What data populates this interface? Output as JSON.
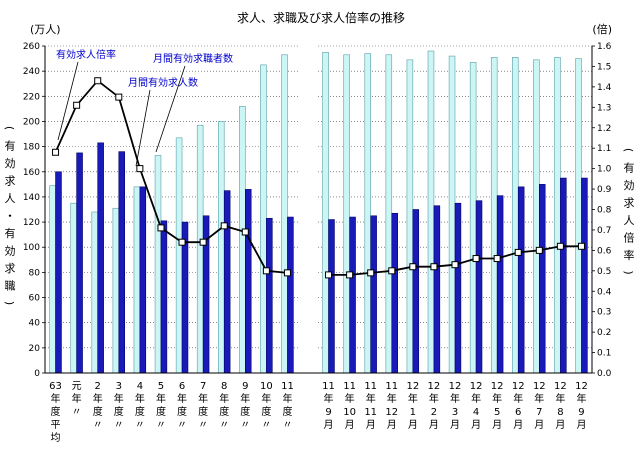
{
  "chart_data": {
    "type": "bar+line",
    "title": "求人、求職及び求人倍率の推移",
    "left_unit": "(万人)",
    "right_unit": "(倍)",
    "left_axis_label": "(有効求人・有効求職)",
    "right_axis_label": "(有効求人倍率)",
    "ylim_left": [
      0,
      260
    ],
    "ylim_right": [
      0,
      1.6
    ],
    "yticks_left": [
      "0",
      "20",
      "40",
      "60",
      "80",
      "100",
      "120",
      "140",
      "160",
      "180",
      "200",
      "220",
      "240",
      "260"
    ],
    "yticks_right": [
      "0.0",
      "0.1",
      "0.2",
      "0.3",
      "0.4",
      "0.5",
      "0.6",
      "0.7",
      "0.8",
      "0.9",
      "1.0",
      "1.1",
      "1.2",
      "1.3",
      "1.4",
      "1.5",
      "1.6"
    ],
    "categories": [
      [
        "63",
        "年",
        "度",
        "平",
        "均"
      ],
      [
        "元",
        "年",
        "〃"
      ],
      [
        "2",
        "年",
        "度",
        "〃"
      ],
      [
        "3",
        "年",
        "度",
        "〃"
      ],
      [
        "4",
        "年",
        "度",
        "〃"
      ],
      [
        "5",
        "年",
        "度",
        "〃"
      ],
      [
        "6",
        "年",
        "度",
        "〃"
      ],
      [
        "7",
        "年",
        "度",
        "〃"
      ],
      [
        "8",
        "年",
        "度",
        "〃"
      ],
      [
        "9",
        "年",
        "度",
        "〃"
      ],
      [
        "10",
        "年",
        "度",
        "〃"
      ],
      [
        "11",
        "年",
        "度",
        "〃"
      ],
      [
        "11",
        "年",
        "9",
        "月"
      ],
      [
        "11",
        "年",
        "10",
        "月"
      ],
      [
        "11",
        "年",
        "11",
        "月"
      ],
      [
        "11",
        "年",
        "12",
        "月"
      ],
      [
        "12",
        "年",
        "1",
        "月"
      ],
      [
        "12",
        "年",
        "2",
        "月"
      ],
      [
        "12",
        "年",
        "3",
        "月"
      ],
      [
        "12",
        "年",
        "4",
        "月"
      ],
      [
        "12",
        "年",
        "5",
        "月"
      ],
      [
        "12",
        "年",
        "6",
        "月"
      ],
      [
        "12",
        "年",
        "7",
        "月"
      ],
      [
        "12",
        "年",
        "8",
        "月"
      ],
      [
        "12",
        "年",
        "9",
        "月"
      ]
    ],
    "series": [
      {
        "name": "月間有効求職者数",
        "kind": "bar",
        "color": "#ccf5f5",
        "values": [
          149,
          135,
          128,
          131,
          148,
          173,
          187,
          197,
          200,
          212,
          245,
          253,
          255,
          253,
          254,
          253,
          249,
          256,
          252,
          247,
          251,
          251,
          249,
          251,
          250
        ]
      },
      {
        "name": "月間有効求人数",
        "kind": "bar",
        "color": "#1a1ab8",
        "values": [
          160,
          175,
          183,
          176,
          148,
          121,
          120,
          125,
          145,
          146,
          123,
          124,
          122,
          124,
          125,
          127,
          130,
          133,
          135,
          137,
          141,
          148,
          150,
          155,
          155
        ]
      },
      {
        "name": "有効求人倍率",
        "kind": "line",
        "color": "#000000",
        "values": [
          1.08,
          1.31,
          1.43,
          1.35,
          1.0,
          0.71,
          0.64,
          0.64,
          0.72,
          0.69,
          0.5,
          0.49,
          0.48,
          0.48,
          0.49,
          0.5,
          0.52,
          0.52,
          0.53,
          0.56,
          0.56,
          0.59,
          0.6,
          0.62,
          0.62
        ]
      }
    ],
    "legend_labels": {
      "ratio": "有効求人倍率",
      "seekers": "月間有効求職者数",
      "openings": "月間有効求人数"
    }
  }
}
